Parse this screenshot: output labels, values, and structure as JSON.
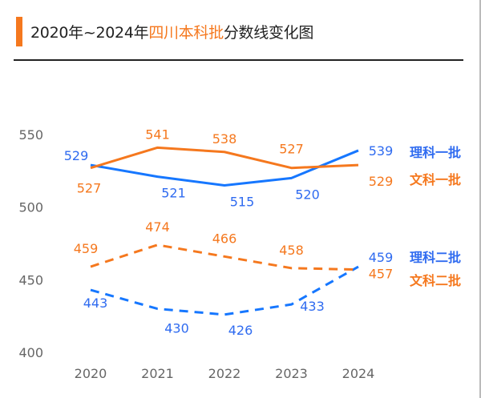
{
  "title": {
    "prefix": "2020年~2024年",
    "highlight": "四川本科批",
    "suffix": "分数线变化图"
  },
  "colors": {
    "accent": "#F5781E",
    "blue": "#1677FF",
    "blue_label": "#2F6BF0",
    "orange": "#F5781E",
    "axis_text": "#666666"
  },
  "chart_data": {
    "type": "line",
    "x": [
      "2020",
      "2021",
      "2022",
      "2023",
      "2024"
    ],
    "ylim": [
      400,
      550
    ],
    "yticks": [
      400,
      450,
      500,
      550
    ],
    "grid": false,
    "legend": "right, labels at line ends",
    "series": [
      {
        "name": "理科一批",
        "values": [
          529,
          521,
          515,
          520,
          539
        ],
        "color": "#1677FF",
        "dash": false
      },
      {
        "name": "文科一批",
        "values": [
          527,
          541,
          538,
          527,
          529
        ],
        "color": "#F5781E",
        "dash": false
      },
      {
        "name": "理科二批",
        "values": [
          443,
          430,
          426,
          433,
          459
        ],
        "color": "#1677FF",
        "dash": true
      },
      {
        "name": "文科二批",
        "values": [
          459,
          474,
          466,
          458,
          457
        ],
        "color": "#F5781E",
        "dash": true
      }
    ]
  }
}
